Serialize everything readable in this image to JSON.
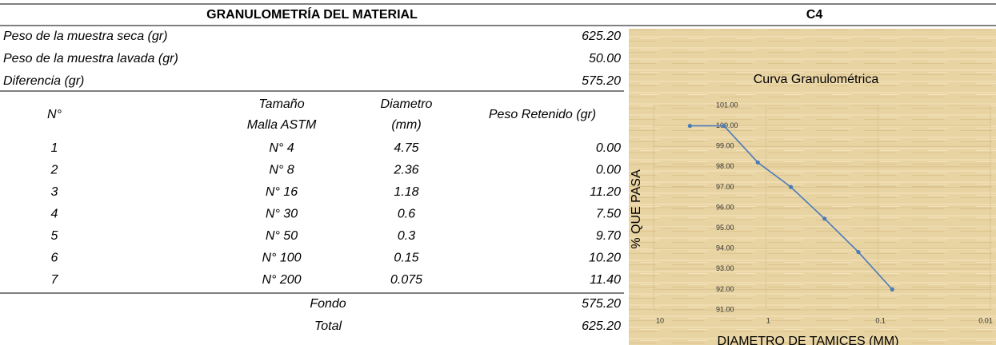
{
  "header": {
    "title": "GRANULOMETRÍA DEL MATERIAL",
    "code": "C4"
  },
  "summary": [
    {
      "label": "Peso de la muestra seca (gr)",
      "value": "625.20"
    },
    {
      "label": "Peso de la muestra lavada (gr)",
      "value": "50.00"
    },
    {
      "label": "Diferencia (gr)",
      "value": "575.20"
    }
  ],
  "table": {
    "columns": [
      [
        "N°"
      ],
      [
        "Tamaño",
        "Malla ASTM"
      ],
      [
        "Diametro",
        "(mm)"
      ],
      [
        "Peso Retenido (gr)"
      ]
    ],
    "rows": [
      [
        "1",
        "N° 4",
        "4.75",
        "0.00"
      ],
      [
        "2",
        "N° 8",
        "2.36",
        "0.00"
      ],
      [
        "3",
        "N° 16",
        "1.18",
        "11.20"
      ],
      [
        "4",
        "N° 30",
        "0.6",
        "7.50"
      ],
      [
        "5",
        "N° 50",
        "0.3",
        "9.70"
      ],
      [
        "6",
        "N° 100",
        "0.15",
        "10.20"
      ],
      [
        "7",
        "N° 200",
        "0.075",
        "11.40"
      ]
    ],
    "footer": [
      {
        "label": "Fondo",
        "value": "575.20"
      },
      {
        "label": "Total",
        "value": "625.20"
      }
    ]
  },
  "chart_data": {
    "type": "line",
    "title": "Curva Granulométrica",
    "xlabel": "DIAMETRO DE TAMICES (MM)",
    "ylabel": "% QUE PASA",
    "x": [
      4.75,
      2.36,
      1.18,
      0.6,
      0.3,
      0.15,
      0.075
    ],
    "series": [
      {
        "color": "#4a7ab8",
        "values": [
          100,
          100,
          98.21,
          97.01,
          95.46,
          93.83,
          92.0
        ]
      }
    ],
    "xscale": "log",
    "xlim": [
      10,
      0.01
    ],
    "xticks": [
      10,
      1,
      0.1,
      0.01
    ],
    "ylim": [
      91,
      101
    ],
    "yticks": [
      {
        "value": 91,
        "label": "91.00"
      },
      {
        "value": 92,
        "label": "92.00"
      },
      {
        "value": 93,
        "label": "93.00"
      },
      {
        "value": 94,
        "label": "94.00"
      },
      {
        "value": 95,
        "label": "95.00"
      },
      {
        "value": 96,
        "label": "96.00"
      },
      {
        "value": 97,
        "label": "97.00"
      },
      {
        "value": 98,
        "label": "98.00"
      },
      {
        "value": 99,
        "label": "99.00"
      },
      {
        "value": 100,
        "label": "100.00"
      },
      {
        "value": 101,
        "label": "101.00"
      }
    ],
    "grid": true
  }
}
